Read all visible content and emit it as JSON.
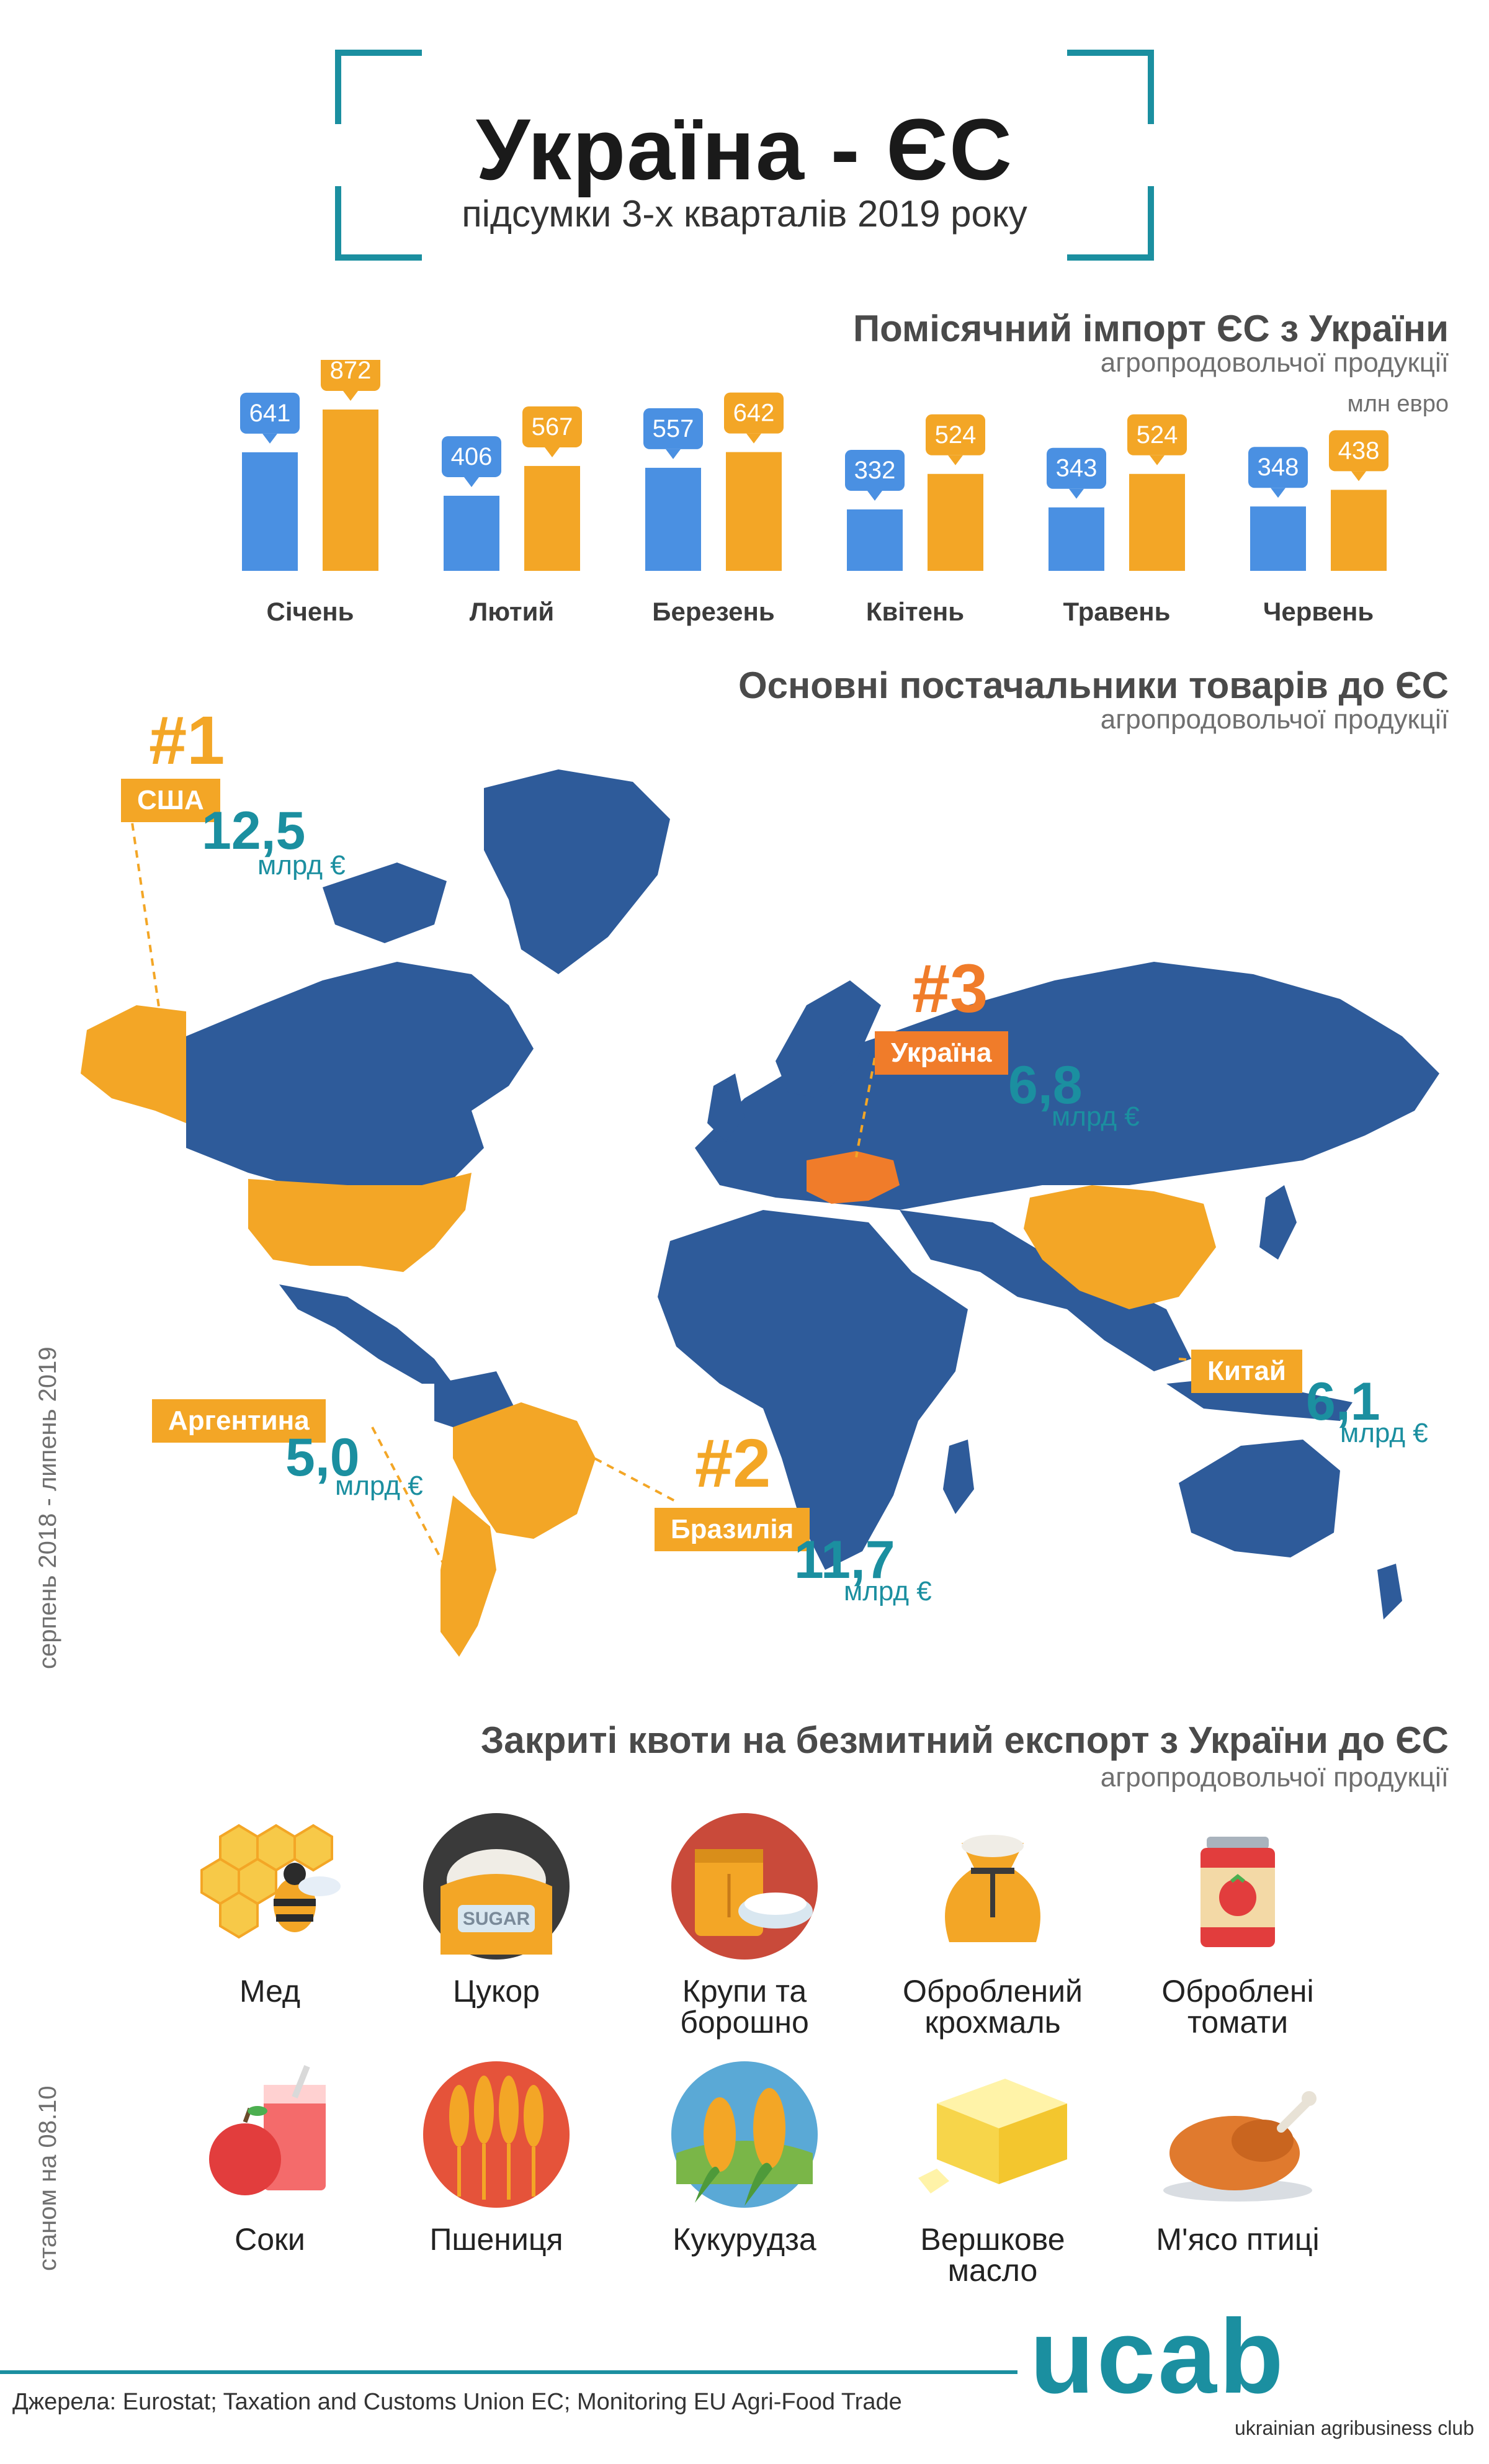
{
  "header": {
    "title": "Україна - ЄС",
    "subtitle": "підсумки 3-х кварталів 2019 року"
  },
  "import_section": {
    "title": "Помісячний імпорт ЄС з України",
    "subtitle": "агропродовольчої продукції",
    "unit": "млн евро"
  },
  "chart_data": {
    "type": "bar",
    "title": "Помісячний імпорт ЄС з України",
    "categories": [
      "Січень",
      "Лютий",
      "Березень",
      "Квітень",
      "Травень",
      "Червень"
    ],
    "series": [
      {
        "values": [
          641,
          406,
          557,
          332,
          343,
          348
        ],
        "color": "#4a90e2"
      },
      {
        "values": [
          872,
          567,
          642,
          524,
          524,
          438
        ],
        "color": "#f3a626"
      }
    ],
    "ylabel": "млн евро",
    "grid": false
  },
  "suppliers_section": {
    "title": "Основні постачальники товарів до ЄС",
    "subtitle": "агропродовольчої продукції",
    "period": "серпень 2018 - липень 2019",
    "map_colors": {
      "land": "#2e5b9a",
      "supplier": "#f3a626",
      "ukraine": "#f07c2a"
    },
    "suppliers": {
      "usa": {
        "rank": "#1",
        "name": "США",
        "amount": "12,5",
        "unit": "млрд €"
      },
      "brazil": {
        "rank": "#2",
        "name": "Бразилія",
        "amount": "11,7",
        "unit": "млрд €"
      },
      "ukraine": {
        "rank": "#3",
        "name": "Україна",
        "amount": "6,8",
        "unit": "млрд €"
      },
      "china": {
        "name": "Китай",
        "amount": "6,1",
        "unit": "млрд €"
      },
      "argentina": {
        "name": "Аргентина",
        "amount": "5,0",
        "unit": "млрд €"
      }
    }
  },
  "quotas_section": {
    "title": "Закриті квоти на безмитний експорт з України до ЄС",
    "subtitle": "агропродовольчої продукції",
    "date_note": "станом на 08.10",
    "items": [
      {
        "label": "Мед",
        "icon": "honeycomb-bee-icon"
      },
      {
        "label": "Цукор",
        "icon": "sugar-bag-icon",
        "icon_text": "SUGAR"
      },
      {
        "label": "Крупи та борошно",
        "icon": "grains-flour-icon"
      },
      {
        "label": "Оброблений крохмаль",
        "icon": "starch-sack-icon"
      },
      {
        "label": "Оброблені томати",
        "icon": "tomato-can-icon"
      },
      {
        "label": "Соки",
        "icon": "juice-apple-icon"
      },
      {
        "label": "Пшениця",
        "icon": "wheat-icon"
      },
      {
        "label": "Кукурудза",
        "icon": "corn-icon"
      },
      {
        "label": "Вершкове масло",
        "icon": "butter-icon"
      },
      {
        "label": "М'ясо птиці",
        "icon": "roast-chicken-icon"
      }
    ]
  },
  "footer": {
    "sources": "Джерела: Eurostat; Taxation and Customs Union EC; Monitoring EU Agri-Food Trade",
    "logo": "ucab",
    "logo_subtitle": "ukrainian agribusiness club"
  }
}
